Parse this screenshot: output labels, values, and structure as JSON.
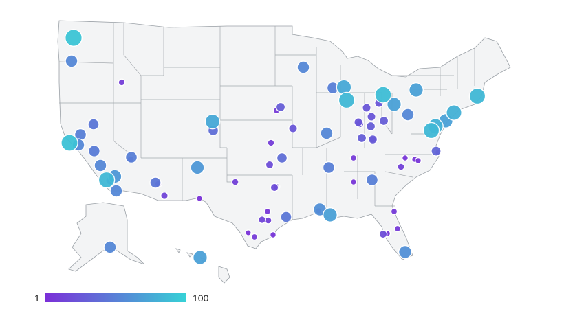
{
  "legend": {
    "min_label": "1",
    "max_label": "100",
    "min_value": 1,
    "max_value": 100,
    "color_low": "#7b2fd8",
    "color_high": "#36d2d6"
  },
  "map": {
    "background": "#ffffff",
    "land_fill": "#f3f4f5",
    "border_color": "#9aa0a6"
  },
  "markers": [
    {
      "name": "seattle",
      "value": 92
    },
    {
      "name": "portland",
      "value": 55
    },
    {
      "name": "boise",
      "value": 10
    },
    {
      "name": "sacramento",
      "value": 50
    },
    {
      "name": "reno",
      "value": 45
    },
    {
      "name": "sf-bay",
      "value": 90
    },
    {
      "name": "san-jose",
      "value": 55
    },
    {
      "name": "fresno",
      "value": 48
    },
    {
      "name": "bakersfield",
      "value": 55
    },
    {
      "name": "las-vegas",
      "value": 50
    },
    {
      "name": "las-vegas-2",
      "value": 12
    },
    {
      "name": "los-angeles",
      "value": 85
    },
    {
      "name": "riverside",
      "value": 65
    },
    {
      "name": "la-2",
      "value": 25
    },
    {
      "name": "san-diego",
      "value": 55
    },
    {
      "name": "phoenix",
      "value": 45
    },
    {
      "name": "phoenix-2",
      "value": 12
    },
    {
      "name": "tucson",
      "value": 15
    },
    {
      "name": "denver",
      "value": 75
    },
    {
      "name": "colorado-springs",
      "value": 40
    },
    {
      "name": "albuquerque",
      "value": 65
    },
    {
      "name": "el-paso",
      "value": 3
    },
    {
      "name": "lubbock",
      "value": 12
    },
    {
      "name": "omaha",
      "value": 8
    },
    {
      "name": "des-moines",
      "value": 30
    },
    {
      "name": "kansas-city",
      "value": 25
    },
    {
      "name": "wichita",
      "value": 10
    },
    {
      "name": "tulsa",
      "value": 40
    },
    {
      "name": "oklahoma-city",
      "value": 20
    },
    {
      "name": "dallas",
      "value": 20
    },
    {
      "name": "fort-worth",
      "value": 10
    },
    {
      "name": "waco",
      "value": 6
    },
    {
      "name": "austin",
      "value": 15
    },
    {
      "name": "san-antonio",
      "value": 8
    },
    {
      "name": "houston",
      "value": 45
    },
    {
      "name": "corpus",
      "value": 5
    },
    {
      "name": "mcallen",
      "value": 12
    },
    {
      "name": "brownsville",
      "value": 3
    },
    {
      "name": "minneapolis",
      "value": 55
    },
    {
      "name": "madison",
      "value": 50
    },
    {
      "name": "milwaukee",
      "value": 75
    },
    {
      "name": "chicago",
      "value": 85
    },
    {
      "name": "st-louis",
      "value": 55
    },
    {
      "name": "indianapolis",
      "value": 25
    },
    {
      "name": "louisville",
      "value": 30
    },
    {
      "name": "nashville",
      "value": 50
    },
    {
      "name": "memphis",
      "value": 8
    },
    {
      "name": "little-rock",
      "value": 5
    },
    {
      "name": "jackson",
      "value": 6
    },
    {
      "name": "new-orleans",
      "value": 70
    },
    {
      "name": "baton-rouge",
      "value": 60
    },
    {
      "name": "atlanta",
      "value": 50
    },
    {
      "name": "charlotte",
      "value": 12
    },
    {
      "name": "raleigh",
      "value": 5
    },
    {
      "name": "durham",
      "value": 5
    },
    {
      "name": "greensboro",
      "value": 5
    },
    {
      "name": "norfolk",
      "value": 35
    },
    {
      "name": "norfolk-2",
      "value": 5
    },
    {
      "name": "detroit",
      "value": 88
    },
    {
      "name": "cleveland",
      "value": 70
    },
    {
      "name": "columbus",
      "value": 30
    },
    {
      "name": "cincinnati",
      "value": 30
    },
    {
      "name": "dayton",
      "value": 28
    },
    {
      "name": "pittsburgh",
      "value": 55
    },
    {
      "name": "lansing",
      "value": 25
    },
    {
      "name": "toledo",
      "value": 25
    },
    {
      "name": "grand-rapids",
      "value": 25
    },
    {
      "name": "fort-wayne",
      "value": 22
    },
    {
      "name": "lexington",
      "value": 12
    },
    {
      "name": "buffalo",
      "value": 70
    },
    {
      "name": "boston",
      "value": 85
    },
    {
      "name": "nyc",
      "value": 80
    },
    {
      "name": "philadelphia",
      "value": 70
    },
    {
      "name": "baltimore",
      "value": 80
    },
    {
      "name": "washington",
      "value": 85
    },
    {
      "name": "jacksonville",
      "value": 8
    },
    {
      "name": "tampa",
      "value": 20
    },
    {
      "name": "orlando",
      "value": 8
    },
    {
      "name": "tampa-2",
      "value": 6
    },
    {
      "name": "miami",
      "value": 60
    },
    {
      "name": "anchorage",
      "value": 55
    },
    {
      "name": "honolulu",
      "value": 70
    }
  ]
}
